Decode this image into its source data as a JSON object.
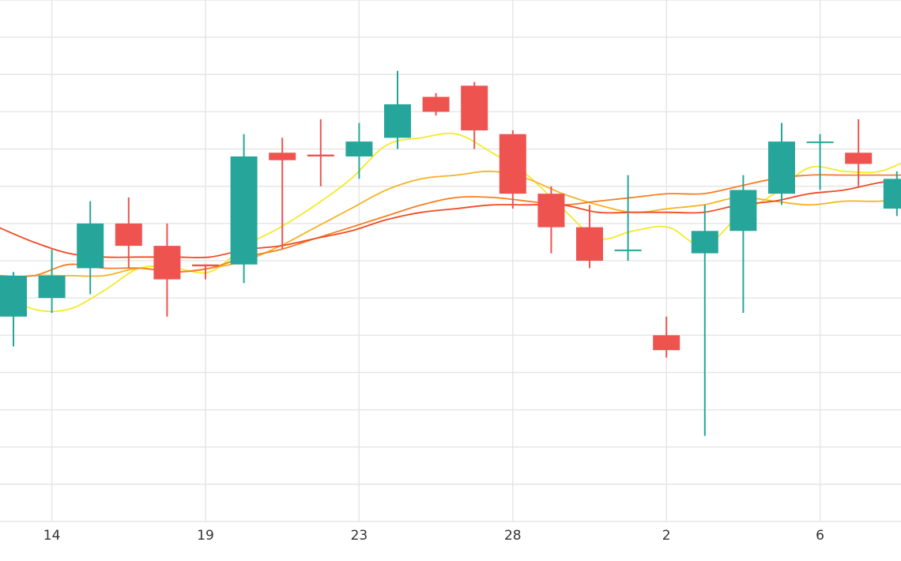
{
  "chart_data": {
    "type": "candlestick",
    "title": "",
    "xlabel": "",
    "ylabel": "",
    "x_tick_labels": [
      {
        "label": "14",
        "index": 1
      },
      {
        "label": "19",
        "index": 5
      },
      {
        "label": "23",
        "index": 9
      },
      {
        "label": "28",
        "index": 13
      },
      {
        "label": "2",
        "index": 17
      },
      {
        "label": "6",
        "index": 21
      }
    ],
    "y_axis_labels_visible": false,
    "grid": true,
    "ylim": [
      0,
      14
    ],
    "candles": [
      {
        "open": 5.5,
        "close": 6.6,
        "high": 6.7,
        "low": 4.7
      },
      {
        "open": 6.0,
        "close": 6.6,
        "high": 7.3,
        "low": 5.6
      },
      {
        "open": 6.8,
        "close": 8.0,
        "high": 8.6,
        "low": 6.1
      },
      {
        "open": 8.0,
        "close": 7.4,
        "high": 8.7,
        "low": 6.8
      },
      {
        "open": 7.4,
        "close": 6.5,
        "high": 8.0,
        "low": 5.5
      },
      {
        "open": 6.9,
        "close": 6.85,
        "high": 6.9,
        "low": 6.5
      },
      {
        "open": 6.9,
        "close": 9.8,
        "high": 10.4,
        "low": 6.4
      },
      {
        "open": 9.9,
        "close": 9.7,
        "high": 10.3,
        "low": 7.3
      },
      {
        "open": 9.85,
        "close": 9.8,
        "high": 10.8,
        "low": 9.0
      },
      {
        "open": 9.8,
        "close": 10.2,
        "high": 10.7,
        "low": 9.2
      },
      {
        "open": 10.3,
        "close": 11.2,
        "high": 12.1,
        "low": 10.0
      },
      {
        "open": 11.4,
        "close": 11.0,
        "high": 11.5,
        "low": 10.9
      },
      {
        "open": 11.7,
        "close": 10.5,
        "high": 11.8,
        "low": 10.0
      },
      {
        "open": 10.4,
        "close": 8.8,
        "high": 10.5,
        "low": 8.4
      },
      {
        "open": 8.8,
        "close": 7.9,
        "high": 9.0,
        "low": 7.2
      },
      {
        "open": 7.9,
        "close": 7.0,
        "high": 8.5,
        "low": 6.8
      },
      {
        "open": 7.3,
        "close": 7.3,
        "high": 9.3,
        "low": 7.0
      },
      {
        "open": 5.0,
        "close": 4.6,
        "high": 5.5,
        "low": 4.4
      },
      {
        "open": 7.2,
        "close": 7.8,
        "high": 8.5,
        "low": 2.3
      },
      {
        "open": 7.8,
        "close": 8.9,
        "high": 9.3,
        "low": 5.6
      },
      {
        "open": 8.8,
        "close": 10.2,
        "high": 10.7,
        "low": 8.5
      },
      {
        "open": 10.2,
        "close": 10.2,
        "high": 10.4,
        "low": 8.9
      },
      {
        "open": 9.9,
        "close": 9.6,
        "high": 10.8,
        "low": 9.0
      },
      {
        "open": 8.4,
        "close": 9.2,
        "high": 9.4,
        "low": 8.2
      }
    ],
    "moving_averages": [
      {
        "color": "#f3ea28",
        "values": [
          6.2,
          5.7,
          5.7,
          6.2,
          6.8,
          6.8,
          6.7,
          7.4,
          7.9,
          8.5,
          9.2,
          10.1,
          10.3,
          10.4,
          9.9,
          9.3,
          8.4,
          7.6,
          7.8,
          7.9,
          7.4,
          8.2,
          8.8,
          9.5,
          9.4,
          9.4,
          9.8
        ]
      },
      {
        "color": "#f5b324",
        "values": [
          6.5,
          6.6,
          6.6,
          6.6,
          6.8,
          6.7,
          6.8,
          7.0,
          7.4,
          7.9,
          8.4,
          8.9,
          9.2,
          9.3,
          9.4,
          9.2,
          8.8,
          8.5,
          8.3,
          8.4,
          8.5,
          8.7,
          8.6,
          8.5,
          8.6,
          8.6,
          8.7
        ]
      },
      {
        "color": "#f57f24",
        "values": [
          6.6,
          6.6,
          6.9,
          6.8,
          6.8,
          6.7,
          6.8,
          7.1,
          7.3,
          7.6,
          7.9,
          8.2,
          8.5,
          8.7,
          8.7,
          8.6,
          8.5,
          8.6,
          8.7,
          8.8,
          8.8,
          9.0,
          9.2,
          9.3,
          9.3,
          9.3,
          9.3
        ]
      },
      {
        "color": "#f04a24",
        "values": [
          7.9,
          7.5,
          7.2,
          7.1,
          7.1,
          7.1,
          7.1,
          7.3,
          7.4,
          7.6,
          7.8,
          8.1,
          8.3,
          8.4,
          8.5,
          8.5,
          8.5,
          8.3,
          8.3,
          8.3,
          8.3,
          8.5,
          8.6,
          8.8,
          8.9,
          9.1,
          9.2
        ]
      }
    ],
    "colors": {
      "up": "#26a69a",
      "down": "#ef5350",
      "grid": "#e6e6e6",
      "tick_text": "#333333"
    }
  }
}
